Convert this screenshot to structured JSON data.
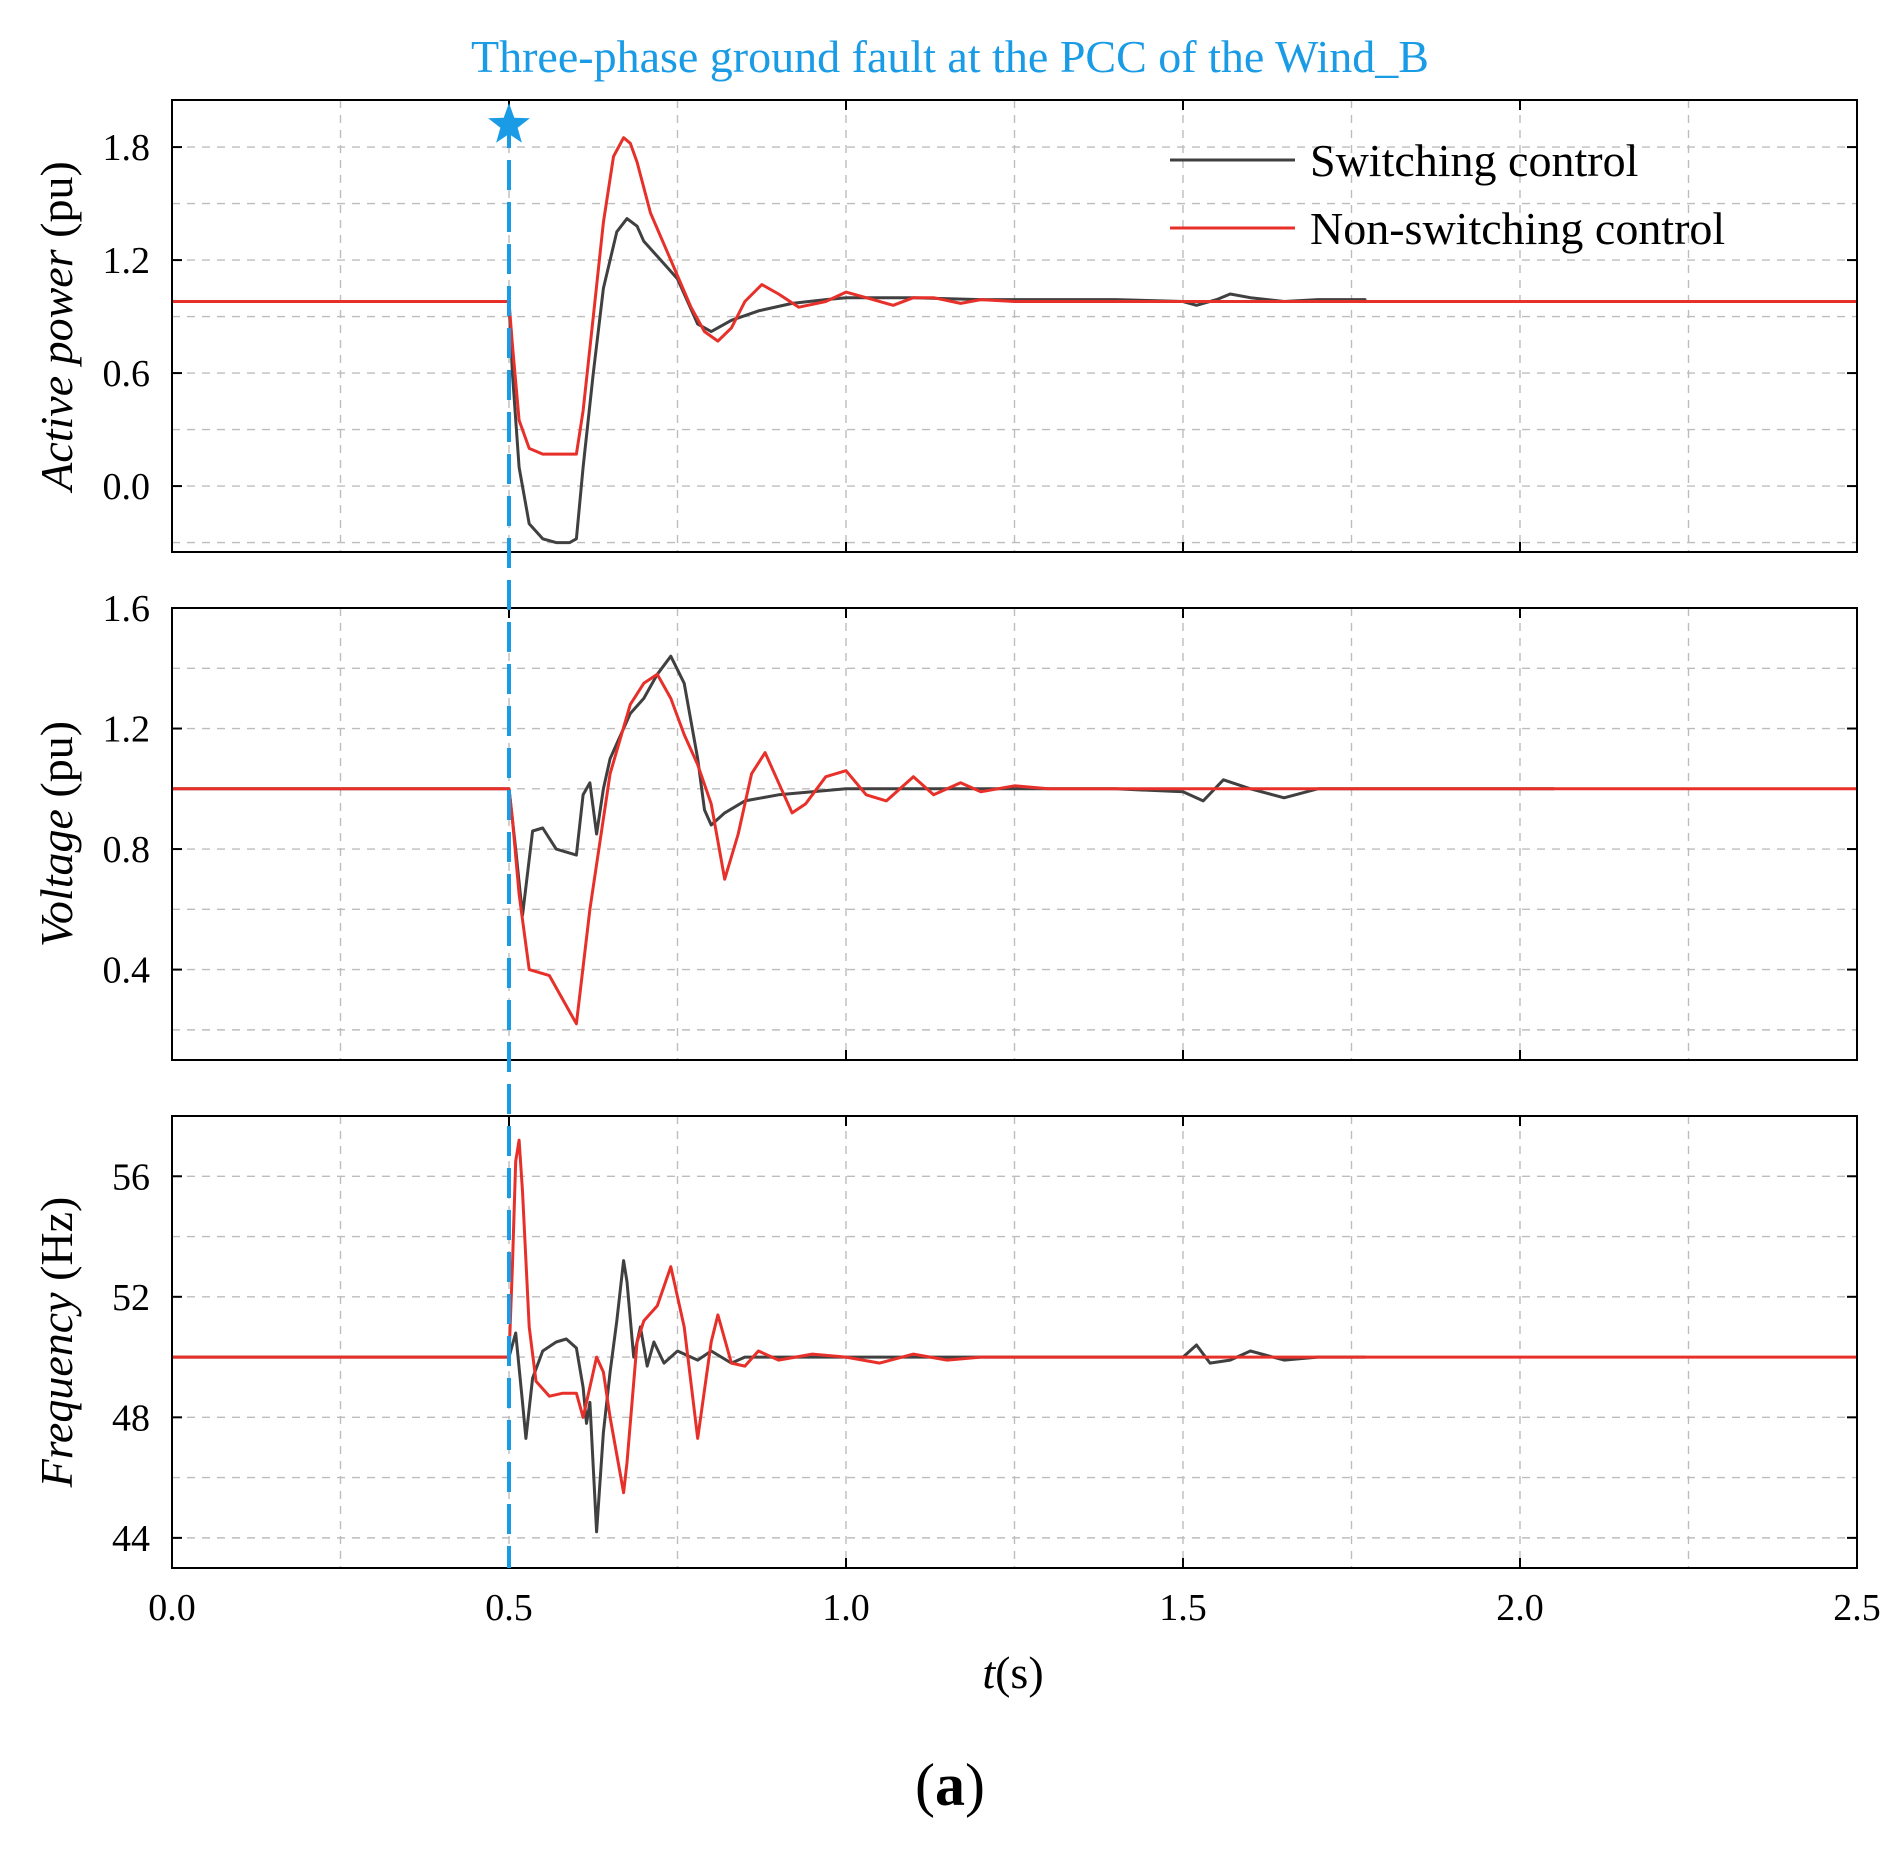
{
  "chart_data": {
    "type": "line",
    "title": "Three-phase ground fault at the PCC of the Wind_B",
    "caption_open": "(",
    "caption_letter": "a",
    "caption_close": ")",
    "xlabel_italic": "t",
    "xlabel_unit": "(s)",
    "xlim": [
      0,
      2.5
    ],
    "x_ticks": [
      "0.0",
      "0.5",
      "1.0",
      "1.5",
      "2.0",
      "2.5"
    ],
    "fault_time": 0.5,
    "colors": {
      "switching": "#404040",
      "non_switching": "#e8302a",
      "fault": "#1a9be6"
    },
    "legend": [
      {
        "key": "switching",
        "label": "Switching control"
      },
      {
        "key": "non_switching",
        "label": "Non-switching control"
      }
    ],
    "panels": [
      {
        "id": "active_power",
        "ylabel_italic": "Active power",
        "ylabel_unit": " (pu)",
        "ylim": [
          -0.35,
          2.05
        ],
        "y_ticks": [
          "0.0",
          "0.6",
          "1.2",
          "1.8"
        ],
        "y_tick_values": [
          0.0,
          0.6,
          1.2,
          1.8
        ],
        "grid_values": [
          -0.3,
          0.0,
          0.3,
          0.6,
          0.9,
          1.2,
          1.5,
          1.8
        ],
        "series": [
          {
            "name": "Switching control",
            "key": "switching",
            "x": [
              0,
              0.5,
              0.505,
              0.515,
              0.53,
              0.55,
              0.57,
              0.59,
              0.6,
              0.61,
              0.625,
              0.64,
              0.66,
              0.675,
              0.69,
              0.7,
              0.72,
              0.75,
              0.78,
              0.8,
              0.83,
              0.87,
              0.92,
              0.97,
              1.0,
              1.05,
              1.1,
              1.2,
              1.3,
              1.4,
              1.5,
              1.52,
              1.55,
              1.57,
              1.6,
              1.65,
              1.7,
              1.77
            ],
            "y": [
              0.98,
              0.98,
              0.6,
              0.1,
              -0.2,
              -0.28,
              -0.3,
              -0.3,
              -0.28,
              0.1,
              0.6,
              1.05,
              1.35,
              1.42,
              1.38,
              1.3,
              1.22,
              1.1,
              0.86,
              0.82,
              0.88,
              0.93,
              0.97,
              0.99,
              1.0,
              1.0,
              1.0,
              0.99,
              0.99,
              0.99,
              0.98,
              0.96,
              0.99,
              1.02,
              1.0,
              0.98,
              0.99,
              0.99
            ]
          },
          {
            "name": "Non-switching control",
            "key": "non_switching",
            "x": [
              0,
              0.5,
              0.505,
              0.515,
              0.53,
              0.55,
              0.57,
              0.6,
              0.61,
              0.625,
              0.64,
              0.655,
              0.67,
              0.68,
              0.69,
              0.71,
              0.74,
              0.77,
              0.79,
              0.81,
              0.83,
              0.85,
              0.875,
              0.9,
              0.93,
              0.97,
              1.0,
              1.03,
              1.07,
              1.1,
              1.13,
              1.17,
              1.2,
              1.25,
              1.3,
              1.4,
              1.6,
              1.8,
              2.0,
              2.5
            ],
            "y": [
              0.98,
              0.98,
              0.75,
              0.35,
              0.2,
              0.17,
              0.17,
              0.17,
              0.4,
              0.9,
              1.4,
              1.75,
              1.85,
              1.82,
              1.72,
              1.45,
              1.2,
              0.95,
              0.82,
              0.77,
              0.84,
              0.98,
              1.07,
              1.02,
              0.95,
              0.98,
              1.03,
              1.0,
              0.96,
              1.0,
              1.0,
              0.97,
              0.99,
              0.98,
              0.98,
              0.98,
              0.98,
              0.98,
              0.98,
              0.98
            ]
          }
        ]
      },
      {
        "id": "voltage",
        "ylabel_italic": "Voltage",
        "ylabel_unit": " (pu)",
        "ylim": [
          0.1,
          1.6
        ],
        "y_ticks": [
          "0.4",
          "0.8",
          "1.2",
          "1.6"
        ],
        "y_tick_values": [
          0.4,
          0.8,
          1.2,
          1.6
        ],
        "grid_values": [
          0.2,
          0.4,
          0.6,
          0.8,
          1.0,
          1.2,
          1.4,
          1.6
        ],
        "series": [
          {
            "name": "Switching control",
            "key": "switching",
            "x": [
              0,
              0.5,
              0.51,
              0.52,
              0.535,
              0.55,
              0.57,
              0.6,
              0.61,
              0.62,
              0.63,
              0.64,
              0.65,
              0.66,
              0.67,
              0.68,
              0.7,
              0.72,
              0.74,
              0.76,
              0.78,
              0.79,
              0.8,
              0.82,
              0.85,
              0.9,
              0.95,
              1.0,
              1.1,
              1.2,
              1.3,
              1.4,
              1.5,
              1.53,
              1.56,
              1.6,
              1.65,
              1.7,
              1.8,
              1.9,
              2.0,
              2.05
            ],
            "y": [
              1.0,
              1.0,
              0.8,
              0.58,
              0.86,
              0.87,
              0.8,
              0.78,
              0.98,
              1.02,
              0.85,
              1.0,
              1.1,
              1.15,
              1.2,
              1.25,
              1.3,
              1.38,
              1.44,
              1.35,
              1.1,
              0.93,
              0.88,
              0.92,
              0.96,
              0.98,
              0.99,
              1.0,
              1.0,
              1.0,
              1.0,
              1.0,
              0.99,
              0.96,
              1.03,
              1.0,
              0.97,
              1.0,
              1.0,
              1.0,
              1.0,
              1.0
            ]
          },
          {
            "name": "Non-switching control",
            "key": "non_switching",
            "x": [
              0,
              0.5,
              0.505,
              0.515,
              0.53,
              0.56,
              0.6,
              0.62,
              0.65,
              0.68,
              0.7,
              0.72,
              0.74,
              0.76,
              0.78,
              0.8,
              0.82,
              0.84,
              0.86,
              0.88,
              0.9,
              0.92,
              0.94,
              0.97,
              1.0,
              1.03,
              1.06,
              1.1,
              1.13,
              1.17,
              1.2,
              1.25,
              1.3,
              1.4,
              1.6,
              1.8,
              2.0,
              2.5
            ],
            "y": [
              1.0,
              1.0,
              0.9,
              0.65,
              0.4,
              0.38,
              0.22,
              0.6,
              1.05,
              1.28,
              1.35,
              1.38,
              1.3,
              1.18,
              1.08,
              0.95,
              0.7,
              0.85,
              1.05,
              1.12,
              1.02,
              0.92,
              0.95,
              1.04,
              1.06,
              0.98,
              0.96,
              1.04,
              0.98,
              1.02,
              0.99,
              1.01,
              1.0,
              1.0,
              1.0,
              1.0,
              1.0,
              1.0
            ]
          }
        ]
      },
      {
        "id": "frequency",
        "ylabel_italic": "Frequency",
        "ylabel_unit": " (Hz)",
        "ylim": [
          43,
          58
        ],
        "y_ticks": [
          "44",
          "48",
          "52",
          "56"
        ],
        "y_tick_values": [
          44,
          48,
          52,
          56
        ],
        "grid_values": [
          44,
          46,
          48,
          50,
          52,
          54,
          56
        ],
        "series": [
          {
            "name": "Switching control",
            "key": "switching",
            "x": [
              0,
              0.5,
              0.51,
              0.52,
              0.525,
              0.535,
              0.55,
              0.57,
              0.585,
              0.6,
              0.61,
              0.615,
              0.62,
              0.63,
              0.64,
              0.65,
              0.66,
              0.67,
              0.675,
              0.685,
              0.695,
              0.705,
              0.715,
              0.73,
              0.75,
              0.78,
              0.8,
              0.83,
              0.85,
              0.9,
              1.0,
              1.2,
              1.5,
              1.52,
              1.54,
              1.57,
              1.6,
              1.65,
              1.7,
              1.77
            ],
            "y": [
              50,
              50,
              50.8,
              48.5,
              47.3,
              49.3,
              50.2,
              50.5,
              50.6,
              50.3,
              49.0,
              47.8,
              48.5,
              44.2,
              47.5,
              49.5,
              51.2,
              53.2,
              52.5,
              50.0,
              51.0,
              49.7,
              50.5,
              49.8,
              50.2,
              49.9,
              50.2,
              49.8,
              50.0,
              50.0,
              50.0,
              50.0,
              50.0,
              50.4,
              49.8,
              49.9,
              50.2,
              49.9,
              50.0,
              50.0
            ]
          },
          {
            "name": "Non-switching control",
            "key": "non_switching",
            "x": [
              0,
              0.5,
              0.505,
              0.51,
              0.515,
              0.52,
              0.53,
              0.54,
              0.56,
              0.58,
              0.6,
              0.61,
              0.62,
              0.63,
              0.64,
              0.65,
              0.67,
              0.675,
              0.69,
              0.7,
              0.72,
              0.74,
              0.76,
              0.78,
              0.8,
              0.81,
              0.83,
              0.85,
              0.87,
              0.9,
              0.95,
              1.0,
              1.05,
              1.1,
              1.15,
              1.2,
              1.3,
              1.5,
              1.8,
              2.0,
              2.5
            ],
            "y": [
              50,
              50,
              53.0,
              56.5,
              57.2,
              55.5,
              51.0,
              49.2,
              48.7,
              48.8,
              48.8,
              48.0,
              49.0,
              50.0,
              49.5,
              48.0,
              45.5,
              46.5,
              50.5,
              51.2,
              51.7,
              53.0,
              51.0,
              47.3,
              50.5,
              51.4,
              49.8,
              49.7,
              50.2,
              49.9,
              50.1,
              50.0,
              49.8,
              50.1,
              49.9,
              50.0,
              50.0,
              50.0,
              50.0,
              50.0,
              50.0
            ]
          }
        ]
      }
    ]
  }
}
